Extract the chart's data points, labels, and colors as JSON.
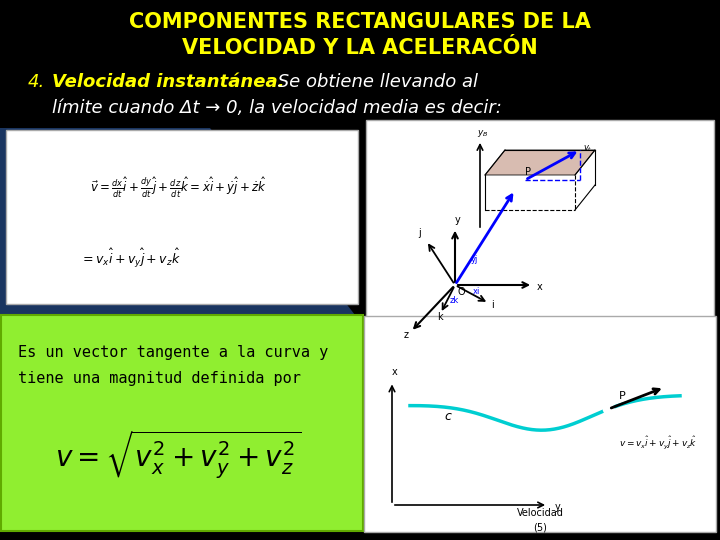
{
  "bg_color": "#000000",
  "title_line1": "COMPONENTES RECTANGULARES DE LA",
  "title_line2": "VELOCIDAD Y LA ACELERACÓN",
  "title_color": "#FFFF00",
  "title_fontsize": 15,
  "subtitle_yellow1": "4.",
  "subtitle_yellow2": "Velocidad instantánea.",
  "subtitle_white1": " Se obtiene llevando al",
  "subtitle_white2": "límite cuando Δt → 0, la velocidad media es decir:",
  "subtitle_fontsize": 13,
  "green_box_color": "#90EE30",
  "green_text1": "Es un vector tangente a la curva y",
  "green_text2": "tiene una magnitud definida por",
  "blue_bg_color": "#1a3560",
  "curve_color": "#00CED1",
  "white": "#FFFFFF",
  "black": "#000000"
}
